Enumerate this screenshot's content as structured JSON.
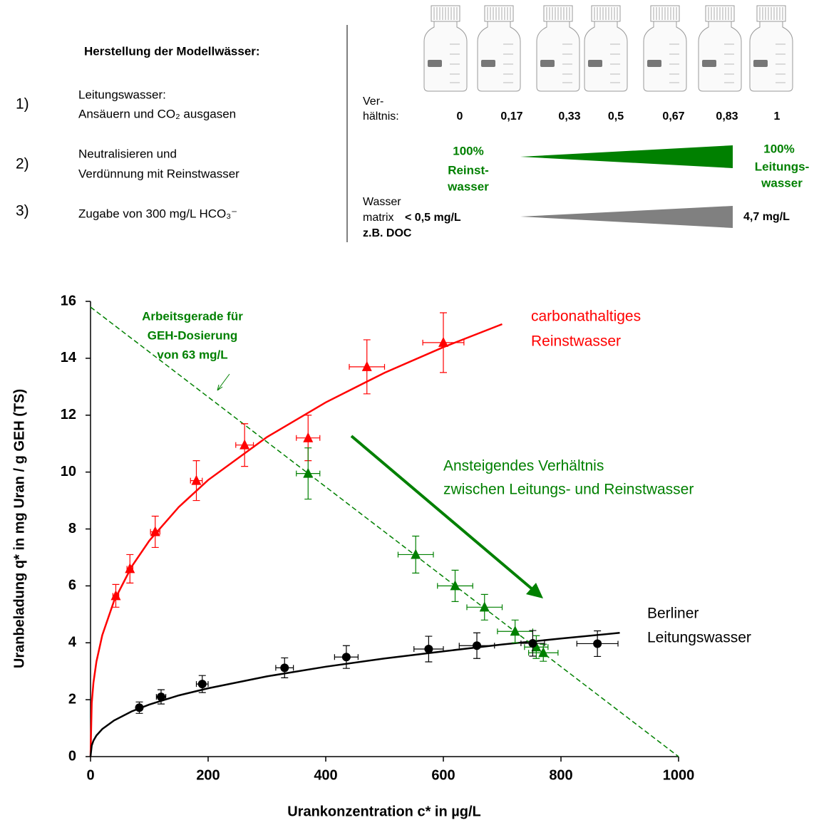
{
  "header": {
    "title": "Herstellung der Modellwässer:",
    "steps": [
      {
        "number": "1)",
        "lines": [
          "Leitungswasser:",
          "Ansäuern und CO₂ ausgasen"
        ]
      },
      {
        "number": "2)",
        "lines": [
          "Neutralisieren und",
          "Verdünnung mit Reinstwasser"
        ]
      },
      {
        "number": "3)",
        "lines": [
          "Zugabe von 300 mg/L HCO₃⁻"
        ]
      }
    ],
    "ratio_label": [
      "Ver-",
      "hältnis:"
    ],
    "ratios": [
      "0",
      "0,17",
      "0,33",
      "0,5",
      "0,67",
      "0,83",
      "1"
    ],
    "left_label": [
      "100%",
      "Reinst-",
      "wasser"
    ],
    "right_label": [
      "100%",
      "Leitungs-",
      "wasser"
    ],
    "matrix_label": [
      "Wasser",
      "matrix",
      "z.B. DOC"
    ],
    "matrix_left": "< 0,5 mg/L",
    "matrix_right": "4,7 mg/L"
  },
  "chart_data": {
    "type": "scatter",
    "xlabel": "Urankonzentration c*   in µg/L",
    "ylabel": "Uranbeladung q*   in mg Uran / g GEH (TS)",
    "xlim": [
      0,
      1000
    ],
    "ylim": [
      0,
      16
    ],
    "xticks": [
      0,
      200,
      400,
      600,
      800,
      1000
    ],
    "yticks": [
      0,
      2,
      4,
      6,
      8,
      10,
      12,
      14,
      16
    ],
    "grid": false,
    "series": [
      {
        "name": [
          "carbonathaltiges",
          "Reinstwasser"
        ],
        "color": "#ff0000",
        "marker": "triangle",
        "x": [
          43,
          67,
          110,
          180,
          262,
          370,
          470,
          600
        ],
        "values": [
          5.65,
          6.6,
          7.9,
          9.7,
          10.95,
          11.2,
          13.7,
          14.55
        ],
        "x_errors": [
          5,
          5,
          8,
          10,
          15,
          20,
          30,
          35
        ],
        "errors": [
          0.4,
          0.5,
          0.55,
          0.7,
          0.75,
          0.8,
          0.95,
          1.05
        ]
      },
      {
        "color": "#008000",
        "marker": "triangle",
        "x": [
          370,
          553,
          620,
          670,
          722,
          758,
          770
        ],
        "values": [
          9.95,
          7.1,
          6.0,
          5.25,
          4.4,
          3.85,
          3.65
        ],
        "x_errors": [
          20,
          30,
          30,
          30,
          30,
          20,
          25
        ],
        "errors": [
          0.9,
          0.65,
          0.55,
          0.45,
          0.4,
          0.4,
          0.3
        ]
      },
      {
        "name": [
          "Berliner",
          "Leitungswasser"
        ],
        "color": "#000000",
        "marker": "circle",
        "x": [
          83,
          120,
          190,
          330,
          435,
          575,
          657,
          752,
          862
        ],
        "values": [
          1.72,
          2.1,
          2.55,
          3.12,
          3.5,
          3.78,
          3.9,
          3.98,
          3.97
        ],
        "x_errors": [
          5,
          8,
          10,
          15,
          20,
          25,
          30,
          20,
          35
        ],
        "errors": [
          0.2,
          0.25,
          0.3,
          0.35,
          0.4,
          0.45,
          0.45,
          0.45,
          0.45
        ]
      }
    ],
    "curves": [
      {
        "color": "#ff0000",
        "dashed": false,
        "x": [
          0,
          2,
          5,
          10,
          20,
          40,
          70,
          100,
          150,
          200,
          300,
          400,
          500,
          600,
          700
        ],
        "values": [
          0,
          1.88,
          2.6,
          3.34,
          4.27,
          5.47,
          6.68,
          7.59,
          8.77,
          9.72,
          11.23,
          12.45,
          13.49,
          14.39,
          15.2
        ]
      },
      {
        "color": "#000000",
        "dashed": false,
        "x": [
          0,
          2,
          5,
          10,
          20,
          40,
          70,
          100,
          150,
          200,
          300,
          400,
          500,
          600,
          700,
          800,
          900
        ],
        "values": [
          0,
          0.39,
          0.56,
          0.74,
          0.97,
          1.27,
          1.59,
          1.83,
          2.15,
          2.4,
          2.82,
          3.16,
          3.45,
          3.7,
          3.94,
          4.15,
          4.35
        ]
      },
      {
        "color": "#008000",
        "dashed": true,
        "x": [
          0,
          1000
        ],
        "values": [
          15.8,
          0
        ]
      }
    ],
    "annotations": [
      {
        "lines": [
          "Arbeitsgerade für",
          "GEH-Dosierung",
          "von 63 mg/L"
        ]
      },
      {
        "lines": [
          "Ansteigendes Verhältnis",
          "zwischen Leitungs- und Reinstwasser"
        ]
      }
    ]
  }
}
